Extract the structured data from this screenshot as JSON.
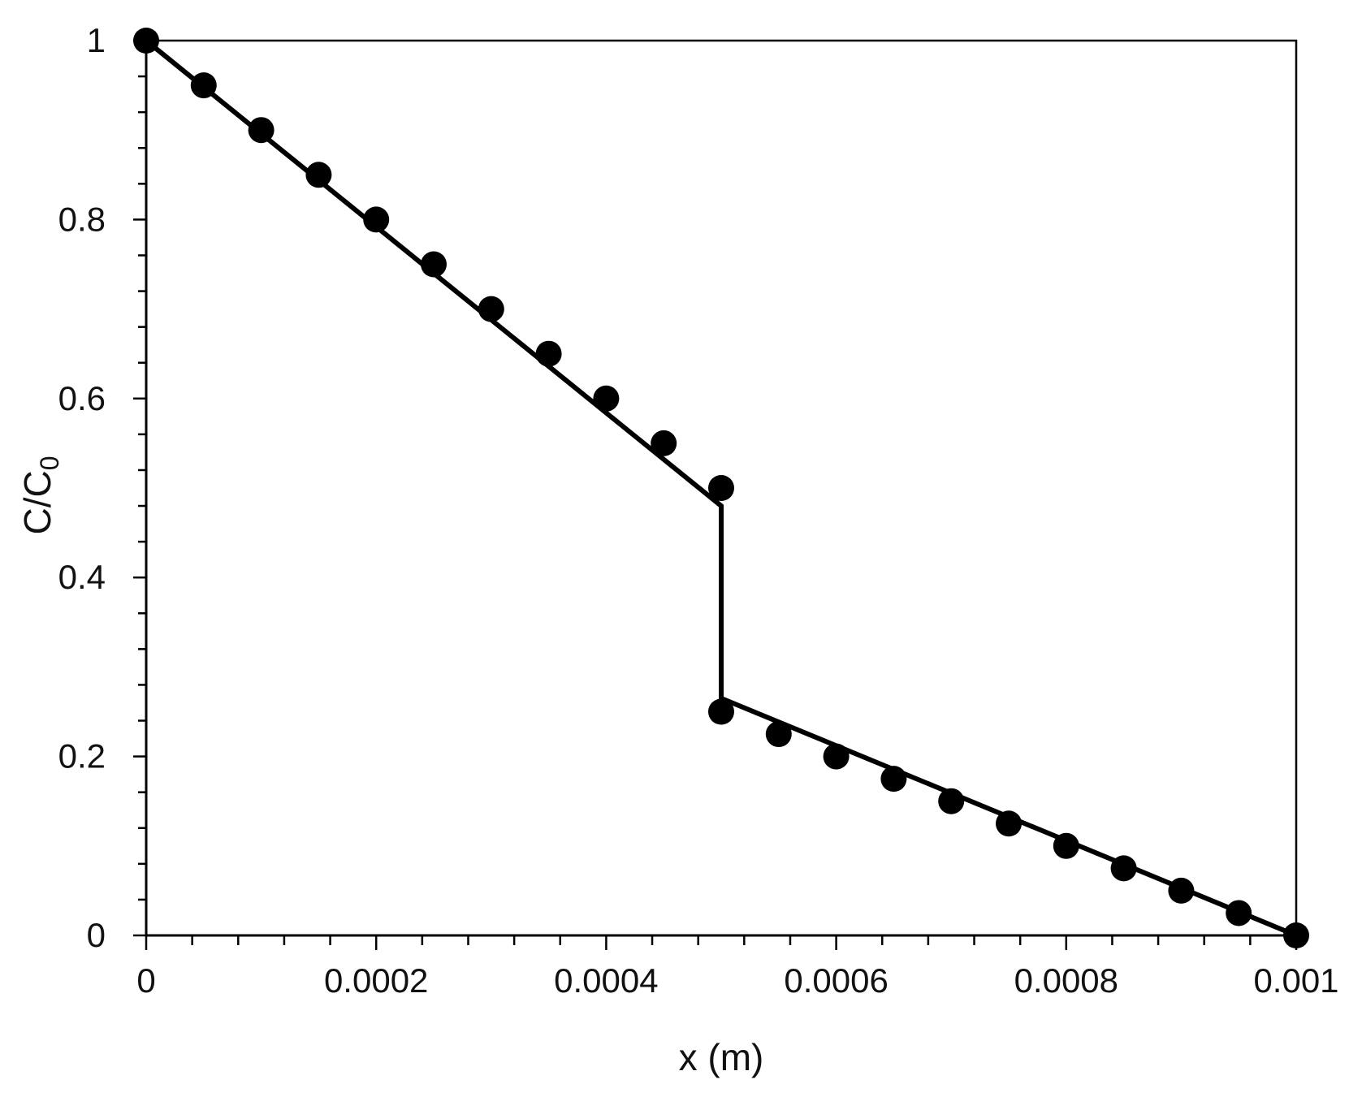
{
  "chart_data": {
    "type": "line",
    "title": "",
    "xlabel": "x (m)",
    "ylabel": {
      "main": "C/C",
      "subscript": "0"
    },
    "xlim": [
      0,
      0.001
    ],
    "ylim": [
      0,
      1
    ],
    "x_ticks": [
      0,
      0.0002,
      0.0004,
      0.0006,
      0.0008,
      0.001
    ],
    "x_tick_labels": [
      "0",
      "0.0002",
      "0.0004",
      "0.0006",
      "0.0008",
      "0.001"
    ],
    "x_minor_step": 4e-05,
    "y_ticks": [
      0,
      0.2,
      0.4,
      0.6,
      0.8,
      1
    ],
    "y_tick_labels": [
      "0",
      "0.2",
      "0.4",
      "0.6",
      "0.8",
      "1"
    ],
    "y_minor_step": 0.04,
    "grid": false,
    "legend": "none",
    "colors": {
      "line": "#000000",
      "marker": "#000000",
      "axis": "#000000"
    },
    "series": [
      {
        "style": "line",
        "x": [
          0,
          0.0005,
          0.0005,
          0.001
        ],
        "y": [
          1,
          0.48,
          0.265,
          0
        ]
      },
      {
        "style": "markers",
        "x": [
          0,
          5e-05,
          0.0001,
          0.00015,
          0.0002,
          0.00025,
          0.0003,
          0.00035,
          0.0004,
          0.00045,
          0.0005,
          0.0005,
          0.00055,
          0.0006,
          0.00065,
          0.0007,
          0.00075,
          0.0008,
          0.00085,
          0.0009,
          0.00095,
          0.001
        ],
        "y": [
          1,
          0.95,
          0.9,
          0.85,
          0.8,
          0.75,
          0.7,
          0.65,
          0.6,
          0.55,
          0.5,
          0.25,
          0.225,
          0.2,
          0.175,
          0.15,
          0.125,
          0.1,
          0.075,
          0.05,
          0.025,
          0
        ]
      }
    ]
  }
}
